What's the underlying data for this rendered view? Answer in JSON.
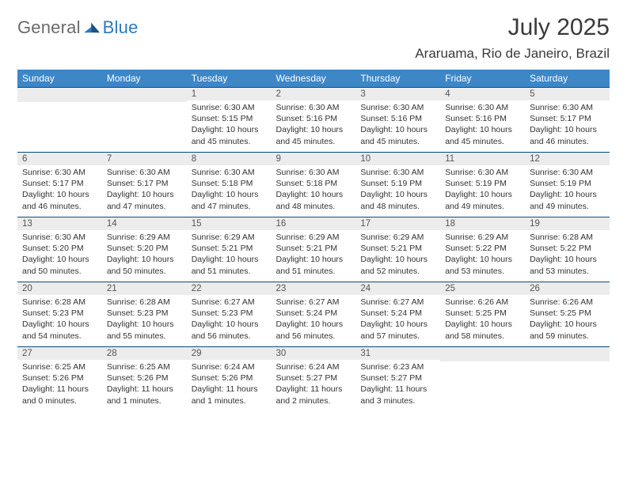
{
  "brand": {
    "text1": "General",
    "text2": "Blue"
  },
  "title": "July 2025",
  "location": "Araruama, Rio de Janeiro, Brazil",
  "colors": {
    "header_bg": "#3d87c7",
    "header_fg": "#ffffff",
    "row_border": "#0a4a80",
    "daynum_bg": "#ececec",
    "logo_gray": "#6a6a6a",
    "logo_blue": "#2f78bd"
  },
  "weekday_headers": [
    "Sunday",
    "Monday",
    "Tuesday",
    "Wednesday",
    "Thursday",
    "Friday",
    "Saturday"
  ],
  "weeks": [
    [
      null,
      null,
      {
        "n": "1",
        "sunrise": "6:30 AM",
        "sunset": "5:15 PM",
        "day_h": "10",
        "day_m": "45"
      },
      {
        "n": "2",
        "sunrise": "6:30 AM",
        "sunset": "5:16 PM",
        "day_h": "10",
        "day_m": "45"
      },
      {
        "n": "3",
        "sunrise": "6:30 AM",
        "sunset": "5:16 PM",
        "day_h": "10",
        "day_m": "45"
      },
      {
        "n": "4",
        "sunrise": "6:30 AM",
        "sunset": "5:16 PM",
        "day_h": "10",
        "day_m": "45"
      },
      {
        "n": "5",
        "sunrise": "6:30 AM",
        "sunset": "5:17 PM",
        "day_h": "10",
        "day_m": "46"
      }
    ],
    [
      {
        "n": "6",
        "sunrise": "6:30 AM",
        "sunset": "5:17 PM",
        "day_h": "10",
        "day_m": "46"
      },
      {
        "n": "7",
        "sunrise": "6:30 AM",
        "sunset": "5:17 PM",
        "day_h": "10",
        "day_m": "47"
      },
      {
        "n": "8",
        "sunrise": "6:30 AM",
        "sunset": "5:18 PM",
        "day_h": "10",
        "day_m": "47"
      },
      {
        "n": "9",
        "sunrise": "6:30 AM",
        "sunset": "5:18 PM",
        "day_h": "10",
        "day_m": "48"
      },
      {
        "n": "10",
        "sunrise": "6:30 AM",
        "sunset": "5:19 PM",
        "day_h": "10",
        "day_m": "48"
      },
      {
        "n": "11",
        "sunrise": "6:30 AM",
        "sunset": "5:19 PM",
        "day_h": "10",
        "day_m": "49"
      },
      {
        "n": "12",
        "sunrise": "6:30 AM",
        "sunset": "5:19 PM",
        "day_h": "10",
        "day_m": "49"
      }
    ],
    [
      {
        "n": "13",
        "sunrise": "6:30 AM",
        "sunset": "5:20 PM",
        "day_h": "10",
        "day_m": "50"
      },
      {
        "n": "14",
        "sunrise": "6:29 AM",
        "sunset": "5:20 PM",
        "day_h": "10",
        "day_m": "50"
      },
      {
        "n": "15",
        "sunrise": "6:29 AM",
        "sunset": "5:21 PM",
        "day_h": "10",
        "day_m": "51"
      },
      {
        "n": "16",
        "sunrise": "6:29 AM",
        "sunset": "5:21 PM",
        "day_h": "10",
        "day_m": "51"
      },
      {
        "n": "17",
        "sunrise": "6:29 AM",
        "sunset": "5:21 PM",
        "day_h": "10",
        "day_m": "52"
      },
      {
        "n": "18",
        "sunrise": "6:29 AM",
        "sunset": "5:22 PM",
        "day_h": "10",
        "day_m": "53"
      },
      {
        "n": "19",
        "sunrise": "6:28 AM",
        "sunset": "5:22 PM",
        "day_h": "10",
        "day_m": "53"
      }
    ],
    [
      {
        "n": "20",
        "sunrise": "6:28 AM",
        "sunset": "5:23 PM",
        "day_h": "10",
        "day_m": "54"
      },
      {
        "n": "21",
        "sunrise": "6:28 AM",
        "sunset": "5:23 PM",
        "day_h": "10",
        "day_m": "55"
      },
      {
        "n": "22",
        "sunrise": "6:27 AM",
        "sunset": "5:23 PM",
        "day_h": "10",
        "day_m": "56"
      },
      {
        "n": "23",
        "sunrise": "6:27 AM",
        "sunset": "5:24 PM",
        "day_h": "10",
        "day_m": "56"
      },
      {
        "n": "24",
        "sunrise": "6:27 AM",
        "sunset": "5:24 PM",
        "day_h": "10",
        "day_m": "57"
      },
      {
        "n": "25",
        "sunrise": "6:26 AM",
        "sunset": "5:25 PM",
        "day_h": "10",
        "day_m": "58"
      },
      {
        "n": "26",
        "sunrise": "6:26 AM",
        "sunset": "5:25 PM",
        "day_h": "10",
        "day_m": "59"
      }
    ],
    [
      {
        "n": "27",
        "sunrise": "6:25 AM",
        "sunset": "5:26 PM",
        "day_h": "11",
        "day_m": "0"
      },
      {
        "n": "28",
        "sunrise": "6:25 AM",
        "sunset": "5:26 PM",
        "day_h": "11",
        "day_m": "1"
      },
      {
        "n": "29",
        "sunrise": "6:24 AM",
        "sunset": "5:26 PM",
        "day_h": "11",
        "day_m": "1"
      },
      {
        "n": "30",
        "sunrise": "6:24 AM",
        "sunset": "5:27 PM",
        "day_h": "11",
        "day_m": "2"
      },
      {
        "n": "31",
        "sunrise": "6:23 AM",
        "sunset": "5:27 PM",
        "day_h": "11",
        "day_m": "3"
      },
      null,
      null
    ]
  ],
  "labels": {
    "sunrise_prefix": "Sunrise: ",
    "sunset_prefix": "Sunset: ",
    "daylight_prefix": "Daylight: ",
    "hours_word": " hours",
    "and_word": "and ",
    "minutes_word": " minutes."
  }
}
